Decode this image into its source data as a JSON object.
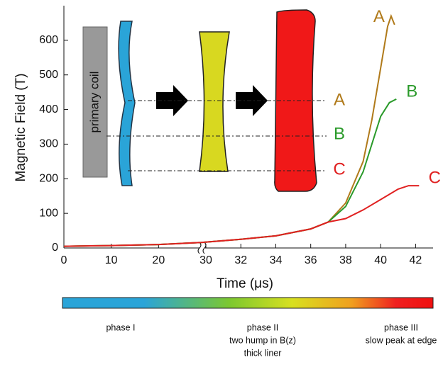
{
  "chart_data": {
    "type": "line",
    "y_label": "Magnetic Field (T)",
    "x_label": "Time (μs)",
    "xlim": [
      0,
      43
    ],
    "x_break": 30,
    "xticks": [
      0,
      10,
      20,
      30,
      32,
      34,
      36,
      38,
      40,
      42
    ],
    "ylim": [
      0,
      700
    ],
    "yticks": [
      0,
      100,
      200,
      300,
      400,
      500,
      600
    ],
    "series": [
      {
        "name": "A",
        "color": "#b07a1a",
        "x": [
          0,
          10,
          20,
          29,
          32,
          34,
          36,
          37,
          38,
          39,
          39.5,
          40,
          40.4,
          40.6,
          40.8
        ],
        "values": [
          5,
          7,
          10,
          16,
          25,
          35,
          55,
          75,
          130,
          250,
          370,
          520,
          640,
          670,
          645
        ]
      },
      {
        "name": "B",
        "color": "#2a9a2a",
        "x": [
          0,
          10,
          20,
          29,
          32,
          34,
          36,
          37,
          38,
          39,
          39.5,
          40,
          40.5,
          40.9
        ],
        "values": [
          5,
          7,
          10,
          16,
          25,
          35,
          55,
          75,
          120,
          220,
          300,
          380,
          420,
          430
        ]
      },
      {
        "name": "C",
        "color": "#e02020",
        "x": [
          0,
          10,
          20,
          29,
          32,
          34,
          36,
          37,
          38,
          39,
          40,
          41,
          41.6,
          42.2
        ],
        "values": [
          5,
          7,
          10,
          16,
          25,
          35,
          55,
          75,
          85,
          110,
          140,
          170,
          180,
          180
        ]
      }
    ],
    "inset_label": "primary coil",
    "phases": [
      [
        "phase I"
      ],
      [
        "phase II",
        "two hump in B(z)",
        "thick liner"
      ],
      [
        "phase III",
        "slow peak at edge"
      ]
    ]
  }
}
